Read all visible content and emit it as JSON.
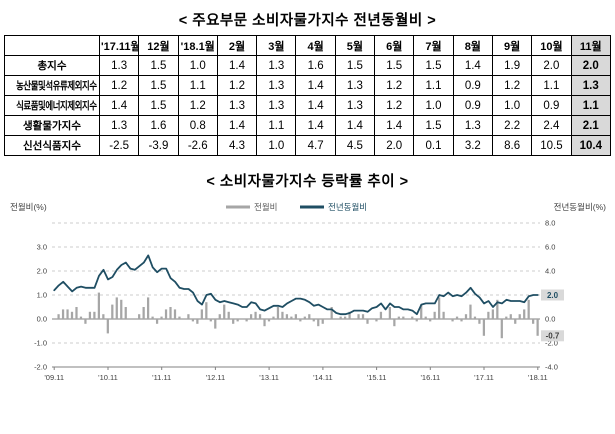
{
  "page": {
    "title_table": "< 주요부문 소비자물가지수 전년동월비 >",
    "title_chart": "< 소비자물가지수 등락률 추이 >"
  },
  "colors": {
    "highlight_bg": "#d9d9d9",
    "bar": "#a6a6a6",
    "line": "#1f4e63",
    "label_bg": "#d9d9d9",
    "grid": "#bfbfbf",
    "axis": "#808080",
    "text": "#404040"
  },
  "table": {
    "corner": "",
    "columns": [
      "'17.11월",
      "12월",
      "'18.1월",
      "2월",
      "3월",
      "4월",
      "5월",
      "6월",
      "7월",
      "8월",
      "9월",
      "10월",
      "11월"
    ],
    "highlight_col": 12,
    "rows": [
      {
        "label": "총지수",
        "values": [
          "1.3",
          "1.5",
          "1.0",
          "1.4",
          "1.3",
          "1.6",
          "1.5",
          "1.5",
          "1.5",
          "1.4",
          "1.9",
          "2.0",
          "2.0"
        ]
      },
      {
        "label": "농산물및석유류제외지수",
        "values": [
          "1.2",
          "1.5",
          "1.1",
          "1.2",
          "1.3",
          "1.4",
          "1.3",
          "1.2",
          "1.1",
          "0.9",
          "1.2",
          "1.1",
          "1.3"
        ]
      },
      {
        "label": "식료품및에너지제외지수",
        "values": [
          "1.4",
          "1.5",
          "1.2",
          "1.3",
          "1.3",
          "1.4",
          "1.3",
          "1.2",
          "1.0",
          "0.9",
          "1.0",
          "0.9",
          "1.1"
        ]
      },
      {
        "label": "생활물가지수",
        "values": [
          "1.3",
          "1.6",
          "0.8",
          "1.4",
          "1.1",
          "1.4",
          "1.4",
          "1.4",
          "1.5",
          "1.3",
          "2.2",
          "2.4",
          "2.1"
        ]
      },
      {
        "label": "신선식품지수",
        "values": [
          "-2.5",
          "-3.9",
          "-2.6",
          "4.3",
          "1.0",
          "4.7",
          "4.5",
          "2.0",
          "0.1",
          "3.2",
          "8.6",
          "10.5",
          "10.4"
        ]
      }
    ]
  },
  "chart_data": {
    "type": "bar+line",
    "title": "소비자물가지수 등락률 추이",
    "x_months": 109,
    "x_tick_labels": [
      "'09.11",
      "'10.11",
      "'11.11",
      "'12.11",
      "'13.11",
      "'14.11",
      "'15.11",
      "'16.11",
      "'17.11",
      "'18.11"
    ],
    "x_tick_positions": [
      0,
      12,
      24,
      36,
      48,
      60,
      72,
      84,
      96,
      108
    ],
    "left_axis": {
      "title": "전월비(%)",
      "tick_labels": [
        "3.0",
        "2.0",
        "1.0",
        "0.0",
        "-1.0",
        "-2.0"
      ],
      "tick_values": [
        3,
        2,
        1,
        0,
        -1,
        -2
      ],
      "min": -2,
      "max": 4
    },
    "right_axis": {
      "title": "전년동월비(%)",
      "tick_labels": [
        "8.0",
        "6.0",
        "4.0",
        "2.0",
        "0.0",
        "-2.0",
        "-4.0"
      ],
      "tick_values": [
        8,
        6,
        4,
        2,
        0,
        -2,
        -4
      ],
      "min": -4,
      "max": 8
    },
    "legend": [
      {
        "label": "전월비",
        "color": "#a6a6a6"
      },
      {
        "label": "전년동월비",
        "color": "#1f4e63"
      }
    ],
    "series": [
      {
        "name": "전월비",
        "type": "bar",
        "axis": "left",
        "values": [
          0.0,
          0.2,
          0.4,
          0.4,
          0.3,
          0.5,
          0.1,
          -0.2,
          0.3,
          0.3,
          1.1,
          0.2,
          -0.6,
          0.6,
          0.9,
          0.8,
          0.5,
          0.0,
          0.0,
          0.2,
          0.5,
          0.9,
          0.1,
          -0.2,
          0.1,
          0.4,
          0.5,
          0.4,
          0.1,
          0.0,
          0.2,
          -0.1,
          -0.2,
          0.4,
          0.7,
          -0.1,
          -0.4,
          0.2,
          0.6,
          0.3,
          -0.2,
          -0.1,
          0.0,
          -0.1,
          0.2,
          0.3,
          0.2,
          -0.3,
          -0.1,
          0.1,
          0.5,
          0.3,
          0.2,
          0.1,
          0.2,
          -0.1,
          0.1,
          0.2,
          -0.1,
          -0.3,
          -0.2,
          0.0,
          0.5,
          0.0,
          0.1,
          0.1,
          0.3,
          0.0,
          0.2,
          0.2,
          -0.2,
          0.0,
          -0.1,
          0.3,
          0.0,
          0.5,
          -0.3,
          0.1,
          0.1,
          0.0,
          0.1,
          -0.1,
          0.6,
          0.1,
          -0.1,
          0.3,
          0.9,
          0.3,
          0.0,
          -0.1,
          0.1,
          -0.1,
          0.2,
          0.6,
          0.1,
          -0.2,
          -0.7,
          0.3,
          0.4,
          0.8,
          -0.8,
          0.1,
          0.2,
          -0.2,
          0.2,
          0.4,
          0.8,
          -0.2,
          -0.7
        ]
      },
      {
        "name": "전년동월비",
        "type": "line",
        "axis": "right",
        "values": [
          2.4,
          2.8,
          3.1,
          2.7,
          2.3,
          2.6,
          2.7,
          2.6,
          2.6,
          2.6,
          3.6,
          4.1,
          3.3,
          3.5,
          4.1,
          4.5,
          4.7,
          4.2,
          4.1,
          4.4,
          4.7,
          5.3,
          4.3,
          3.9,
          4.2,
          4.2,
          3.4,
          3.1,
          2.6,
          2.5,
          2.5,
          2.2,
          1.5,
          1.2,
          2.0,
          2.1,
          1.6,
          1.4,
          1.5,
          1.4,
          1.3,
          1.2,
          1.0,
          1.0,
          1.4,
          1.3,
          0.8,
          0.7,
          0.9,
          1.1,
          1.1,
          1.0,
          1.3,
          1.5,
          1.7,
          1.7,
          1.6,
          1.4,
          1.1,
          1.2,
          1.0,
          0.8,
          0.8,
          0.5,
          0.4,
          0.4,
          0.5,
          0.7,
          0.7,
          0.7,
          0.6,
          0.9,
          1.0,
          1.3,
          0.8,
          1.3,
          1.0,
          1.0,
          0.8,
          0.8,
          0.7,
          0.4,
          1.2,
          1.3,
          1.3,
          1.3,
          2.0,
          1.9,
          2.2,
          1.9,
          2.0,
          1.9,
          2.2,
          2.6,
          2.1,
          1.8,
          1.3,
          1.5,
          1.0,
          1.4,
          1.3,
          1.6,
          1.5,
          1.5,
          1.5,
          1.4,
          1.9,
          2.0,
          2.0
        ]
      }
    ],
    "end_labels": [
      {
        "text": "2.0",
        "axis": "right",
        "value": 2.0
      },
      {
        "text": "-0.7",
        "axis": "left",
        "value": -0.7
      }
    ]
  }
}
